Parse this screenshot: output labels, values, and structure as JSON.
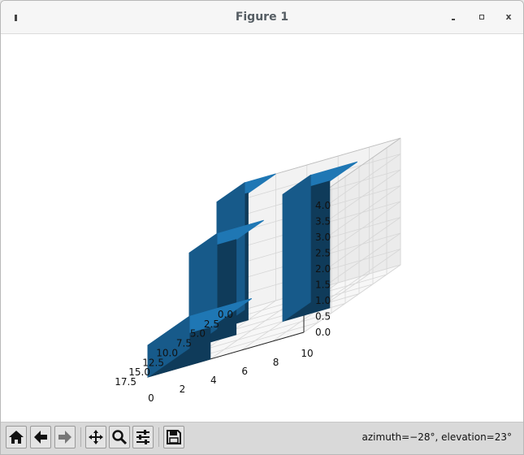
{
  "window": {
    "title": "Figure 1",
    "close_label": "x"
  },
  "toolbar": {
    "buttons": [
      {
        "name": "home-button",
        "icon": "home-icon"
      },
      {
        "name": "back-button",
        "icon": "back-arrow-icon"
      },
      {
        "name": "forward-button",
        "icon": "forward-arrow-icon"
      },
      {
        "name": "pan-button",
        "icon": "move-icon"
      },
      {
        "name": "zoom-button",
        "icon": "magnifier-icon"
      },
      {
        "name": "configure-subplots-button",
        "icon": "sliders-icon"
      },
      {
        "name": "save-button",
        "icon": "floppy-disk-icon"
      }
    ],
    "status": "azimuth=−28°, elevation=23°"
  },
  "colors": {
    "bar_face": "#1f77b4",
    "bar_dark": "#0f3b5a",
    "bar_side": "#175a8a"
  },
  "chart_data": {
    "type": "bar3d",
    "x_ticks": [
      "0.0",
      "2.5",
      "5.0",
      "7.5",
      "10.0",
      "12.5",
      "15.0",
      "17.5"
    ],
    "y_ticks": [
      "0",
      "2",
      "4",
      "6",
      "8",
      "10"
    ],
    "z_ticks": [
      "0.0",
      "0.5",
      "1.0",
      "1.5",
      "2.0",
      "2.5",
      "3.0",
      "3.5",
      "4.0"
    ],
    "xlim": [
      0,
      17.5
    ],
    "ylim": [
      0,
      10
    ],
    "zlim": [
      0,
      4
    ],
    "azimuth": -28,
    "elevation": 23,
    "grid": true,
    "bars": [
      {
        "x": [
          0,
          5
        ],
        "y": [
          0,
          2
        ],
        "z": 4
      },
      {
        "x": [
          5,
          10
        ],
        "y": [
          0,
          3
        ],
        "z": 3
      },
      {
        "x": [
          5,
          10
        ],
        "y": [
          6,
          9
        ],
        "z": 4
      },
      {
        "x": [
          10,
          17.5
        ],
        "y": [
          0,
          4
        ],
        "z": 1
      }
    ]
  }
}
